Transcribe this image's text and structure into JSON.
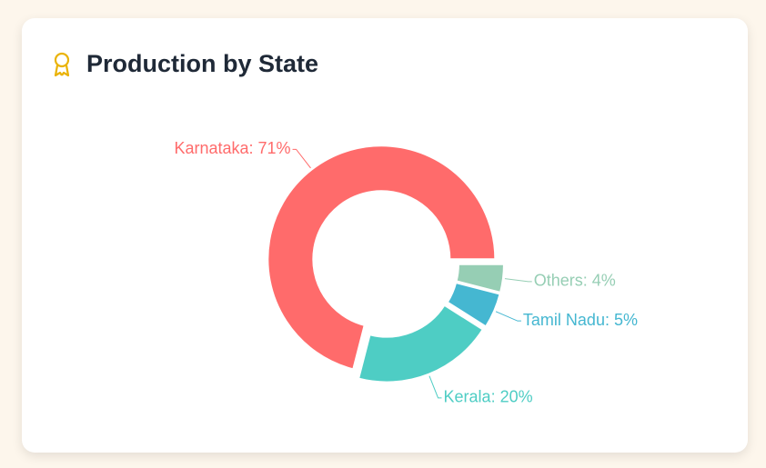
{
  "chart_data": {
    "type": "donut",
    "title": "Production by State",
    "categories": [
      "Karnataka",
      "Kerala",
      "Tamil Nadu",
      "Others"
    ],
    "values": [
      71,
      20,
      5,
      4
    ],
    "value_labels": [
      "Karnataka: 71%",
      "Kerala: 20%",
      "Tamil Nadu: 5%",
      "Others: 4%"
    ],
    "colors": [
      "#ff6b6b",
      "#4ecdc4",
      "#45b7d1",
      "#96ceb4"
    ]
  }
}
